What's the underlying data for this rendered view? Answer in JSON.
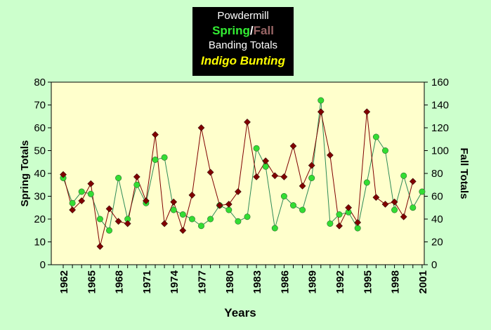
{
  "chart_data": {
    "type": "line",
    "title_lines": [
      "Powdermill",
      "Spring",
      "/",
      "Fall",
      "Banding Totals",
      "Indigo Bunting"
    ],
    "title": {
      "line1": "Powdermill",
      "spring_word": "Spring",
      "separator": "/",
      "fall_word": "Fall",
      "line3": "Banding Totals",
      "line4": "Indigo Bunting"
    },
    "xlabel": "Years",
    "ylabel_left": "Spring Totals",
    "ylabel_right": "Fall Totals",
    "x": [
      1962,
      1963,
      1964,
      1965,
      1966,
      1967,
      1968,
      1969,
      1970,
      1971,
      1972,
      1973,
      1974,
      1975,
      1976,
      1977,
      1978,
      1979,
      1980,
      1981,
      1982,
      1983,
      1984,
      1985,
      1986,
      1987,
      1988,
      1989,
      1990,
      1991,
      1992,
      1993,
      1994,
      1995,
      1996,
      1997,
      1998,
      1999,
      2000,
      2001
    ],
    "x_ticks": [
      "1962",
      "1965",
      "1968",
      "1971",
      "1974",
      "1977",
      "1980",
      "1983",
      "1986",
      "1989",
      "1992",
      "1995",
      "1998",
      "2001"
    ],
    "y_left_ticks": [
      "0",
      "10",
      "20",
      "30",
      "40",
      "50",
      "60",
      "70",
      "80"
    ],
    "y_right_ticks": [
      "0",
      "20",
      "40",
      "60",
      "80",
      "100",
      "120",
      "140",
      "160"
    ],
    "ylim_left": [
      0,
      80
    ],
    "ylim_right": [
      0,
      160
    ],
    "series": [
      {
        "name": "Spring",
        "axis": "left",
        "color": "#33dd33",
        "line_color": "#2e8b57",
        "marker": "circle",
        "values": [
          38,
          27,
          32,
          31,
          20,
          15,
          38,
          20,
          35,
          27,
          46,
          47,
          24,
          22,
          20,
          17,
          20,
          26,
          24,
          19,
          21,
          51,
          43,
          16,
          30,
          26,
          24,
          38,
          72,
          18,
          22,
          23,
          16,
          36,
          56,
          50,
          24,
          39,
          25,
          32
        ]
      },
      {
        "name": "Fall",
        "axis": "right",
        "color": "#800000",
        "line_color": "#800000",
        "marker": "diamond",
        "values": [
          79,
          48,
          56,
          71,
          16,
          49,
          38,
          36,
          77,
          56,
          114,
          36,
          55,
          30,
          61,
          120,
          81,
          52,
          53,
          64,
          125,
          77,
          91,
          78,
          77,
          104,
          69,
          87,
          134,
          96,
          34,
          50,
          37,
          134,
          59,
          53,
          55,
          42,
          73,
          null
        ]
      }
    ],
    "grid": false,
    "legend": "none"
  }
}
